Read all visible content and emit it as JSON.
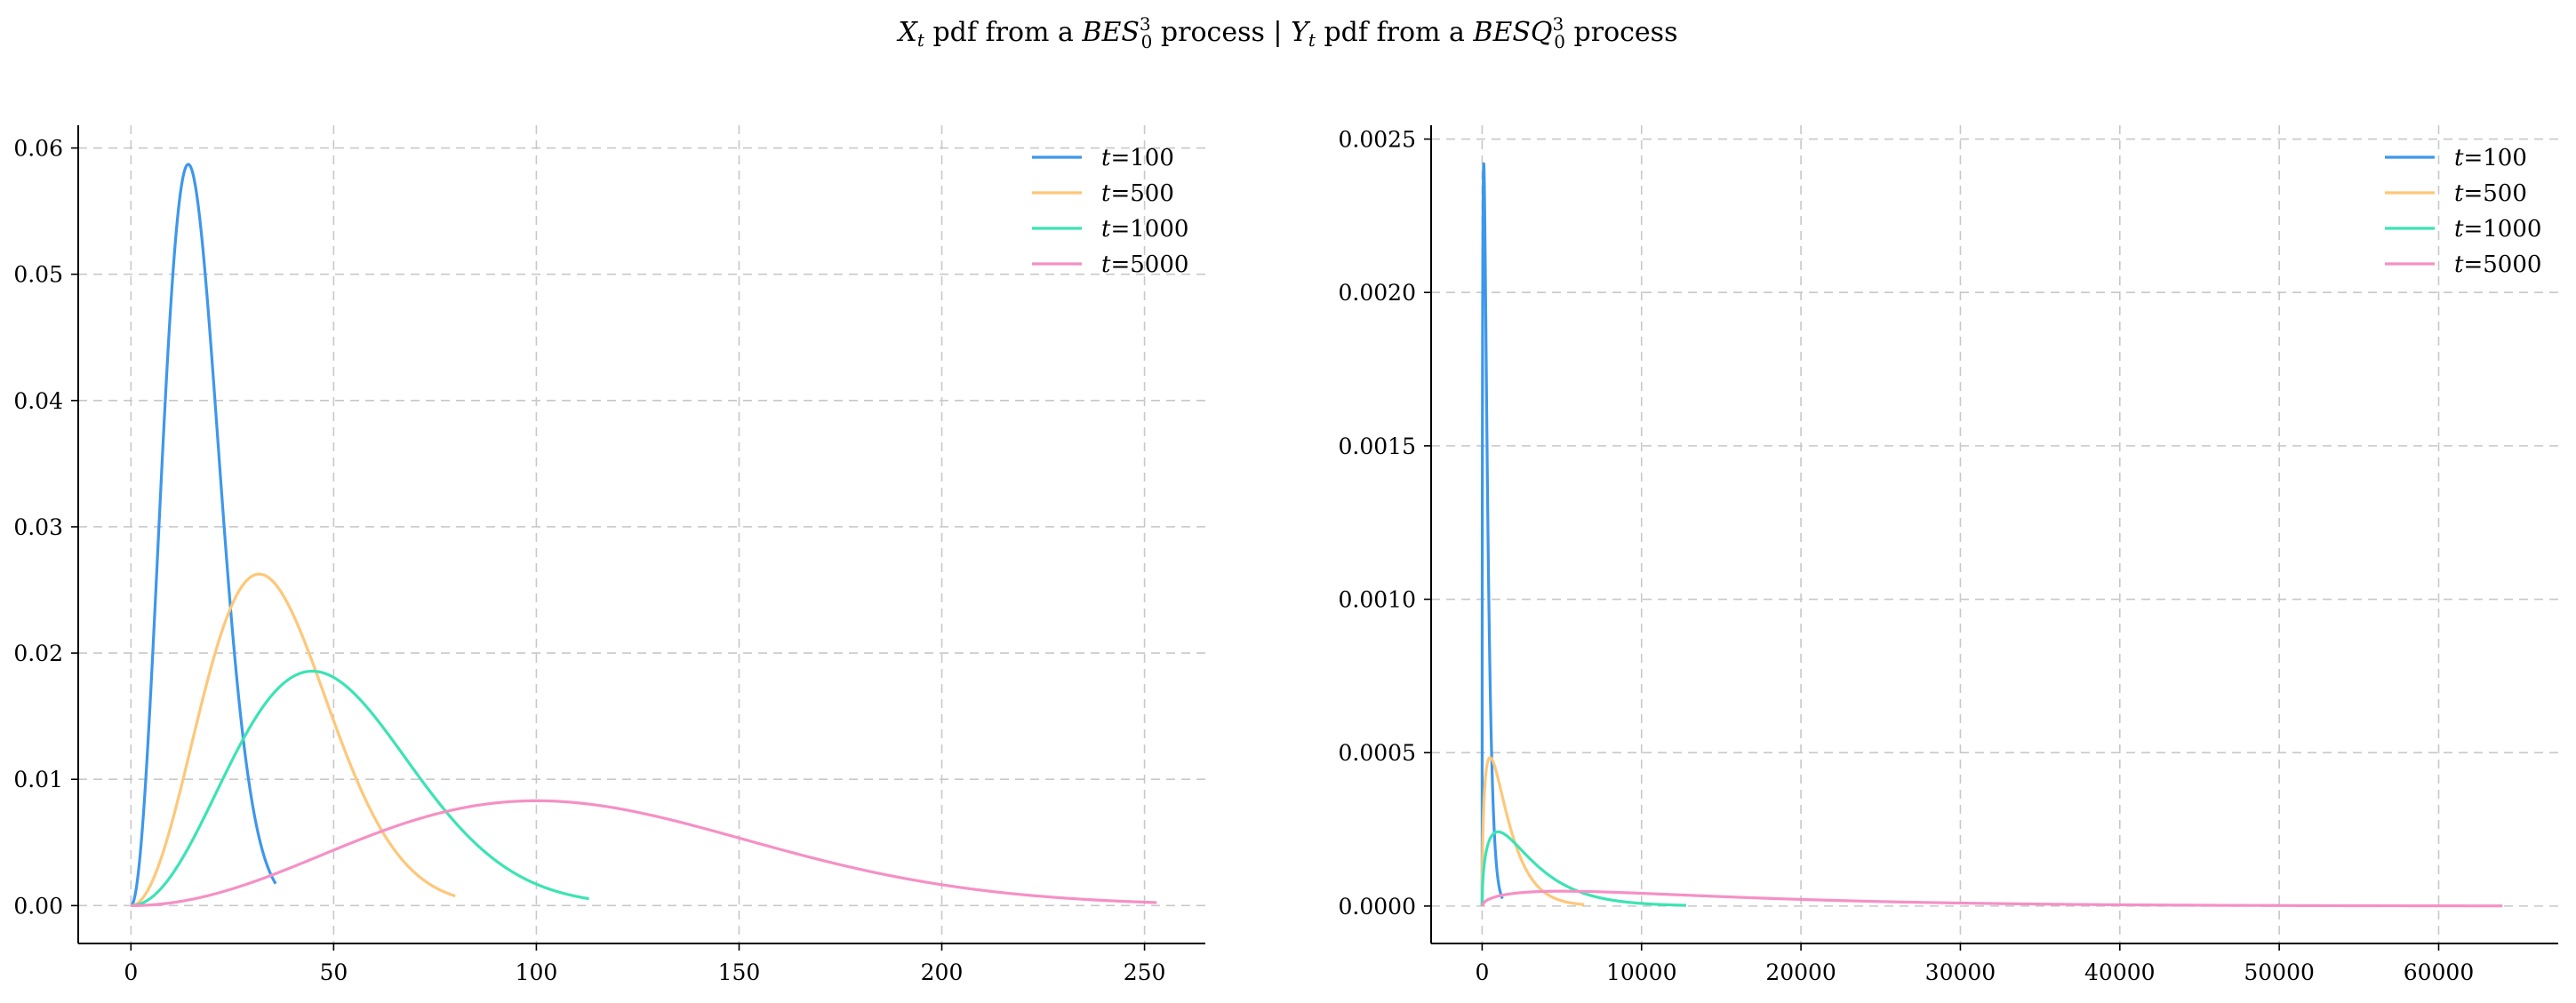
{
  "figure": {
    "suptitle": "X_t pdf from a BES_0^3 process | Y_t pdf from a BESQ_0^3 process",
    "suptitle_parts": {
      "x_sym": "X",
      "x_sub": "t",
      "text1": " pdf from a ",
      "bes_sym": "BES",
      "bes_sup": "3",
      "bes_sub": "0",
      "text2": " process | ",
      "y_sym": "Y",
      "y_sub": "t",
      "text3": " pdf from a ",
      "besq_sym": "BESQ",
      "besq_sup": "3",
      "besq_sub": "0",
      "text4": " process"
    }
  },
  "chart_data": [
    {
      "type": "line",
      "title": "",
      "xlabel": "",
      "ylabel": "",
      "xlim": [
        -13,
        265
      ],
      "ylim": [
        -0.003,
        0.0618
      ],
      "xticks": [
        0,
        50,
        100,
        150,
        200,
        250
      ],
      "xtick_labels": [
        "0",
        "50",
        "100",
        "150",
        "200",
        "250"
      ],
      "yticks": [
        0.0,
        0.01,
        0.02,
        0.03,
        0.04,
        0.05,
        0.06
      ],
      "ytick_labels": [
        "0.00",
        "0.01",
        "0.02",
        "0.03",
        "0.04",
        "0.05",
        "0.06"
      ],
      "grid": true,
      "legend_position": "top-right",
      "distribution": "maxwell",
      "series": [
        {
          "name": "t=100",
          "t": 100,
          "x_max": 35.7,
          "color": "#3d97ec"
        },
        {
          "name": "t=500",
          "t": 500,
          "x_max": 80.0,
          "color": "#fec779"
        },
        {
          "name": "t=1000",
          "t": 1000,
          "x_max": 113.0,
          "color": "#3ce3b4"
        },
        {
          "name": "t=5000",
          "t": 5000,
          "x_max": 253.0,
          "color": "#f590c5"
        }
      ]
    },
    {
      "type": "line",
      "title": "",
      "xlabel": "",
      "ylabel": "",
      "xlim": [
        -3200,
        67500
      ],
      "ylim": [
        -0.000122,
        0.002545
      ],
      "xticks": [
        0,
        10000,
        20000,
        30000,
        40000,
        50000,
        60000
      ],
      "xtick_labels": [
        "0",
        "10000",
        "20000",
        "30000",
        "40000",
        "50000",
        "60000"
      ],
      "yticks": [
        0.0,
        0.0005,
        0.001,
        0.0015,
        0.002,
        0.0025
      ],
      "ytick_labels": [
        "0.0000",
        "0.0005",
        "0.0010",
        "0.0015",
        "0.0020",
        "0.0025"
      ],
      "grid": true,
      "legend_position": "top-right",
      "distribution": "chi-square-3-scaled",
      "series": [
        {
          "name": "t=100",
          "t": 100,
          "x_max": 1275,
          "color": "#3d97ec"
        },
        {
          "name": "t=500",
          "t": 500,
          "x_max": 6400,
          "color": "#fec779"
        },
        {
          "name": "t=1000",
          "t": 1000,
          "x_max": 12800,
          "color": "#3ce3b4"
        },
        {
          "name": "t=5000",
          "t": 5000,
          "x_max": 64000,
          "color": "#f590c5"
        }
      ]
    }
  ]
}
